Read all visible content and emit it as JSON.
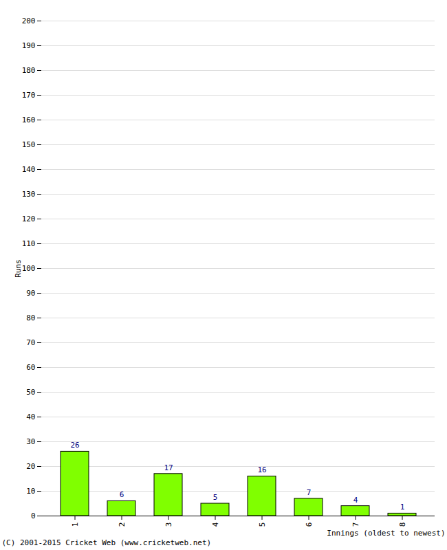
{
  "chart_data": {
    "type": "bar",
    "categories": [
      "1",
      "2",
      "3",
      "4",
      "5",
      "6",
      "7",
      "8"
    ],
    "values": [
      26,
      6,
      17,
      5,
      16,
      7,
      4,
      1
    ],
    "color": "#80ff00",
    "x_label": "Innings (oldest to newest)",
    "y_label": "Runs",
    "caption": "(C) 2001-2015 Cricket Web (www.cricketweb.net)",
    "ylim": [
      0,
      200
    ],
    "yticks": [
      0,
      10,
      20,
      30,
      40,
      50,
      60,
      70,
      80,
      90,
      100,
      110,
      120,
      130,
      140,
      150,
      160,
      170,
      180,
      190,
      200
    ],
    "grid": true,
    "data_labels": true
  }
}
